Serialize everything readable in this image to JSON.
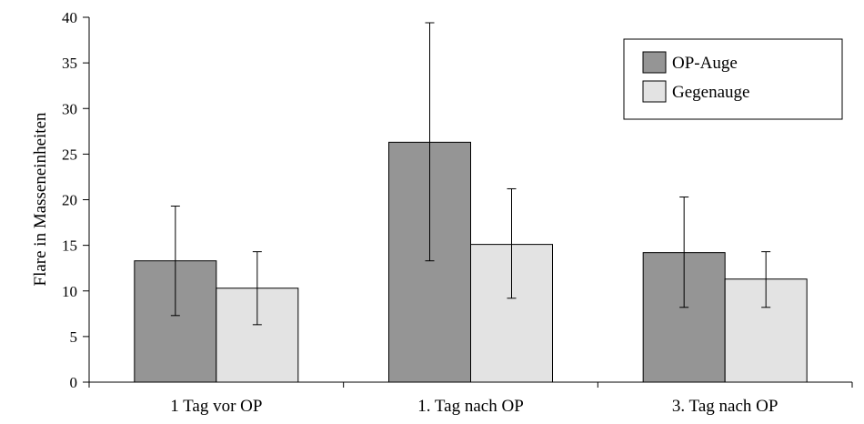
{
  "chart_data": {
    "type": "bar",
    "title": "",
    "xlabel": "",
    "ylabel": "Flare in Masseneinheiten",
    "ylim": [
      0,
      40
    ],
    "yticks": [
      0,
      5,
      10,
      15,
      20,
      25,
      30,
      35,
      40
    ],
    "grid": false,
    "legend_position": "top-right",
    "categories": [
      "1 Tag vor OP",
      "1. Tag nach OP",
      "3. Tag nach OP"
    ],
    "series": [
      {
        "name": "OP-Auge",
        "color": "#959595",
        "values": [
          13.3,
          26.3,
          14.2
        ],
        "error_low": [
          7.3,
          13.3,
          8.2
        ],
        "error_high": [
          19.3,
          39.4,
          20.3
        ]
      },
      {
        "name": "Gegenauge",
        "color": "#e3e3e3",
        "values": [
          10.3,
          15.1,
          11.3
        ],
        "error_low": [
          6.3,
          9.2,
          8.2
        ],
        "error_high": [
          14.3,
          21.2,
          14.3
        ]
      }
    ]
  }
}
